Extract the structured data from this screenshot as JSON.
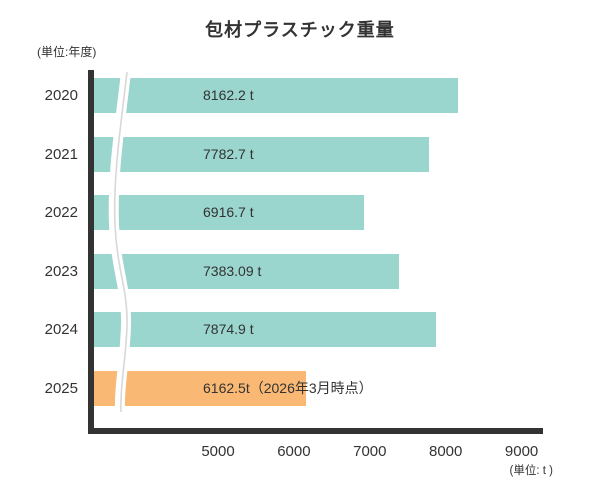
{
  "labels": {
    "y_unit": "(単位:年度)",
    "x_unit": "(単位: t )"
  },
  "chart_data": {
    "type": "bar",
    "orientation": "horizontal",
    "title": "包材プラスチック重量",
    "categories": [
      "2020",
      "2021",
      "2022",
      "2023",
      "2024",
      "2025"
    ],
    "values": [
      8162.2,
      7782.7,
      6916.7,
      7383.09,
      7874.9,
      6162.5
    ],
    "bar_labels": [
      "8162.2 t",
      "7782.7 t",
      "6916.7 t",
      "7383.09 t",
      "7874.9 t",
      "6162.5t（2026年3月時点）"
    ],
    "bar_colors": [
      "#9AD5CE",
      "#9AD5CE",
      "#9AD5CE",
      "#9AD5CE",
      "#9AD5CE",
      "#F9B873"
    ],
    "x_ticks": [
      "5000",
      "6000",
      "7000",
      "8000",
      "9000"
    ],
    "x_tick_values": [
      5000,
      6000,
      7000,
      8000,
      9000
    ],
    "xlabel": "(単位: t )",
    "ylabel": "(単位:年度)",
    "axis_break": true,
    "xlim": [
      3370,
      9300
    ],
    "grid": false,
    "legend": "none",
    "colors": {
      "bar_default": "#9AD5CE",
      "bar_highlight": "#F9B873",
      "axis": "#333333",
      "text": "#333333",
      "break_band": "#ffffff",
      "break_line": "#d8d8d8"
    }
  }
}
